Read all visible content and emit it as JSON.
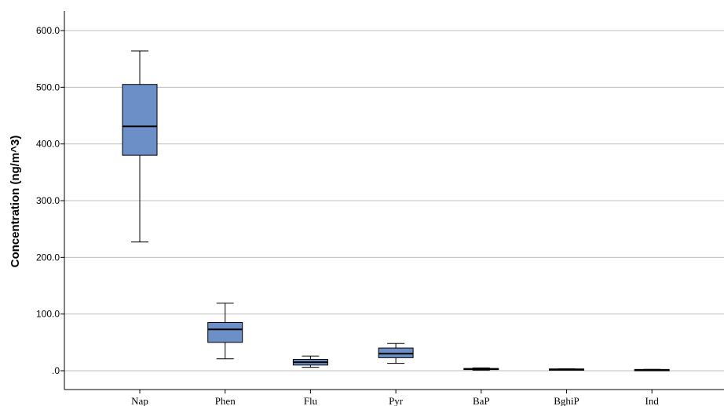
{
  "chart_data": {
    "type": "box",
    "title": "",
    "xlabel": "",
    "ylabel": "Concentration (ng/m^3)",
    "ylim": [
      0,
      640
    ],
    "yticks": [
      0,
      100,
      200,
      300,
      400,
      500,
      600
    ],
    "ytick_labels": [
      ".0",
      "100.0",
      "200.0",
      "300.0",
      "400.0",
      "500.0",
      "600.0"
    ],
    "grid": true,
    "box_color": "#6d8fc7",
    "categories": [
      "Nap",
      "Phen",
      "Flu",
      "Pyr",
      "BaP",
      "BghiP",
      "Ind"
    ],
    "boxes": [
      {
        "min": 227,
        "q1": 380,
        "median": 431,
        "q3": 505,
        "max": 564
      },
      {
        "min": 21,
        "q1": 50,
        "median": 73,
        "q3": 85,
        "max": 119
      },
      {
        "min": 6,
        "q1": 10,
        "median": 15,
        "q3": 20,
        "max": 26
      },
      {
        "min": 13,
        "q1": 23,
        "median": 30,
        "q3": 40,
        "max": 48
      },
      {
        "min": 1,
        "q1": 2,
        "median": 3,
        "q3": 4,
        "max": 5
      },
      {
        "min": 1.5,
        "q1": 2,
        "median": 2.5,
        "q3": 3,
        "max": 3.5
      },
      {
        "min": 0.5,
        "q1": 1,
        "median": 1.5,
        "q3": 2,
        "max": 2.5
      }
    ]
  }
}
